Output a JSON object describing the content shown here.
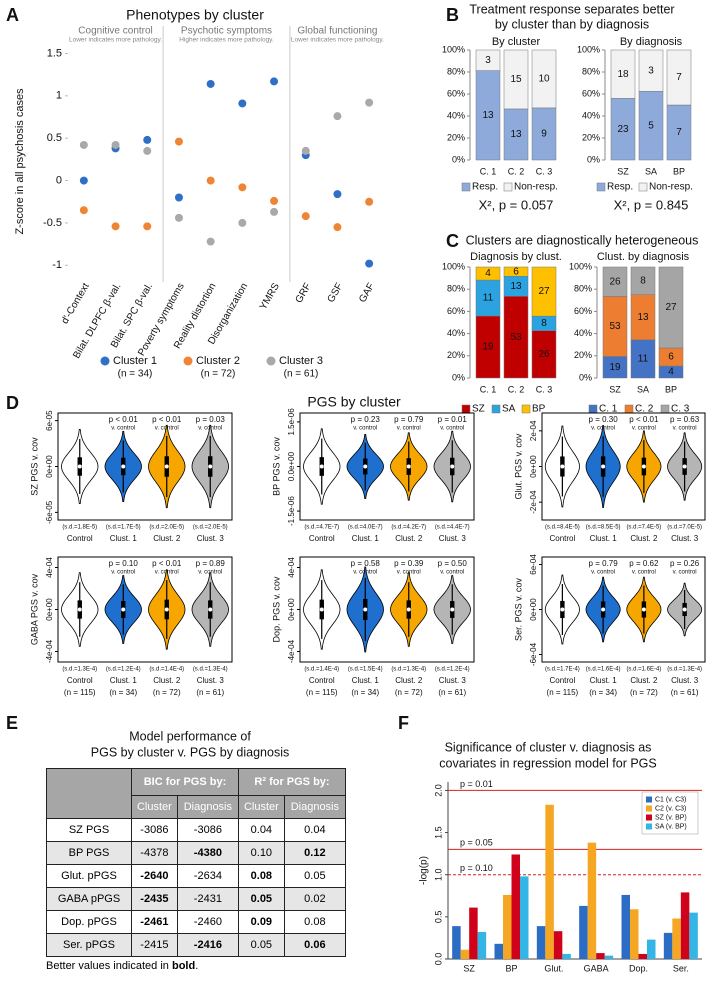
{
  "panel_labels": [
    "A",
    "B",
    "C",
    "D",
    "E",
    "F"
  ],
  "headings": {
    "B": [
      "Treatment response separates better",
      "by cluster than by diagnosis"
    ],
    "C": "Clusters are diagnostically heterogeneous",
    "D": "PGS by cluster",
    "n_labels": [
      "(n = 115)",
      "(n = 34)",
      "(n = 72)",
      "(n = 61)"
    ]
  },
  "chart_data": [
    {
      "type": "dot",
      "title": "Phenotypes by cluster",
      "groups": [
        {
          "title": "Cognitive control",
          "note": "Lower indicates more pathology."
        },
        {
          "title": "Psychotic symptoms",
          "note": "Higher indicates more pathology."
        },
        {
          "title": "Global functioning",
          "note": "Lower indicates more pathology."
        }
      ],
      "ylabel": "Z-score in all psychosis cases",
      "categories": [
        "d'-Context",
        "Bilat. DLPFC β-val.",
        "Bilat. SPC β-val.",
        "Poverty symptoms",
        "Reality distortion",
        "Disorganization",
        "YMRS",
        "GRF",
        "GSF",
        "GAF"
      ],
      "series": [
        {
          "name": "Cluster 1",
          "n_label": "(n = 34)",
          "color": "#2e6fc7",
          "values": [
            0,
            0.38,
            0.48,
            -0.2,
            1.14,
            0.91,
            1.17,
            0.3,
            -0.16,
            -0.98
          ]
        },
        {
          "name": "Cluster 2",
          "n_label": "(n = 72)",
          "color": "#ee8434",
          "values": [
            -0.35,
            -0.54,
            -0.54,
            0.46,
            0,
            -0.08,
            -0.24,
            -0.42,
            -0.55,
            -0.25
          ]
        },
        {
          "name": "Cluster 3",
          "n_label": "(n = 61)",
          "color": "#a9a9a9",
          "values": [
            0.42,
            0.42,
            0.35,
            -0.44,
            -0.72,
            -0.5,
            -0.37,
            0.35,
            0.76,
            0.92
          ]
        }
      ],
      "ylim": [
        -1.15,
        1.6
      ],
      "yticks": [
        -1,
        -0.5,
        0,
        0.5,
        1,
        1.5
      ]
    },
    {
      "type": "stacked_bar",
      "title": "By cluster",
      "categories": [
        "C. 1",
        "C. 2",
        "C. 3"
      ],
      "series": [
        {
          "name": "Resp.",
          "color": "#8eaadb",
          "values": [
            13,
            13,
            9
          ]
        },
        {
          "name": "Non-resp.",
          "color": "#f2f2f2",
          "values": [
            3,
            15,
            10
          ]
        }
      ],
      "ylim": [
        0,
        100
      ],
      "yticks": [
        {
          "value": 0,
          "label": "0%"
        },
        {
          "value": 20,
          "label": "20%"
        },
        {
          "value": 40,
          "label": "40%"
        },
        {
          "value": 60,
          "label": "60%"
        },
        {
          "value": 80,
          "label": "80%"
        },
        {
          "value": 100,
          "label": "100%"
        }
      ],
      "annotation": "Χ², p = 0.057"
    },
    {
      "type": "stacked_bar",
      "title": "By diagnosis",
      "categories": [
        "SZ",
        "SA",
        "BP"
      ],
      "series": [
        {
          "name": "Resp.",
          "color": "#8eaadb",
          "values": [
            23,
            5,
            7
          ]
        },
        {
          "name": "Non-resp.",
          "color": "#f2f2f2",
          "values": [
            18,
            3,
            7
          ]
        }
      ],
      "ylim": [
        0,
        100
      ],
      "yticks": [
        {
          "value": 0,
          "label": "0%"
        },
        {
          "value": 20,
          "label": "20%"
        },
        {
          "value": 40,
          "label": "40%"
        },
        {
          "value": 60,
          "label": "60%"
        },
        {
          "value": 80,
          "label": "80%"
        },
        {
          "value": 100,
          "label": "100%"
        }
      ],
      "annotation": "Χ², p = 0.845"
    },
    {
      "type": "stacked_bar",
      "title": "Diagnosis by clust.",
      "categories": [
        "C. 1",
        "C. 2",
        "C. 3"
      ],
      "series": [
        {
          "name": "SZ",
          "color": "#c00000",
          "values": [
            19,
            53,
            26
          ]
        },
        {
          "name": "SA",
          "color": "#2ba3e0",
          "values": [
            11,
            13,
            8
          ]
        },
        {
          "name": "BP",
          "color": "#ffc000",
          "values": [
            4,
            6,
            27
          ]
        }
      ],
      "ylim": [
        0,
        100
      ],
      "yticks": [
        {
          "value": 0,
          "label": "0%"
        },
        {
          "value": 20,
          "label": "20%"
        },
        {
          "value": 40,
          "label": "40%"
        },
        {
          "value": 60,
          "label": "60%"
        },
        {
          "value": 80,
          "label": "80%"
        },
        {
          "value": 100,
          "label": "100%"
        }
      ]
    },
    {
      "type": "stacked_bar",
      "title": "Clust. by diagnosis",
      "categories": [
        "SZ",
        "SA",
        "BP"
      ],
      "series": [
        {
          "name": "C. 1",
          "color": "#4472c4",
          "values": [
            19,
            11,
            4
          ]
        },
        {
          "name": "C. 2",
          "color": "#ed7d31",
          "values": [
            53,
            13,
            6
          ]
        },
        {
          "name": "C. 3",
          "color": "#a5a5a5",
          "values": [
            26,
            8,
            27
          ]
        }
      ],
      "ylim": [
        0,
        100
      ],
      "yticks": [
        {
          "value": 0,
          "label": "0%"
        },
        {
          "value": 20,
          "label": "20%"
        },
        {
          "value": 40,
          "label": "40%"
        },
        {
          "value": 60,
          "label": "60%"
        },
        {
          "value": 80,
          "label": "80%"
        },
        {
          "value": 100,
          "label": "100%"
        }
      ]
    },
    {
      "type": "violin",
      "ylabel": "SZ PGS v. cov",
      "categories": [
        "Control",
        "Clust. 1",
        "Clust. 2",
        "Clust. 3"
      ],
      "colors": [
        "#ffffff",
        "#1f6fce",
        "#f7a600",
        "#b5b5b5"
      ],
      "values": [
        1.8e-05,
        1.7e-05,
        2e-05,
        2e-05
      ],
      "value_labels": [
        "(s.d.=1.8E-5)",
        "(s.d.=1.7E-5)",
        "(s.d.=2.0E-5)",
        "(s.d.=2.0E-5)"
      ],
      "p_labels": [
        "p < 0.01",
        "p < 0.01",
        "p = 0.03"
      ],
      "p_note": "v. control",
      "p_colors": [
        "#000000",
        "#000000",
        "#000000"
      ],
      "ylim": [
        -7e-05,
        7e-05
      ],
      "yticks": [
        {
          "value": -6e-05,
          "label": "-6e-05"
        },
        {
          "value": 0,
          "label": "0e+00"
        },
        {
          "value": 6e-05,
          "label": "6e-05"
        }
      ]
    },
    {
      "type": "violin",
      "ylabel": "BP PGS v. cov",
      "categories": [
        "Control",
        "Clust. 1",
        "Clust. 2",
        "Clust. 3"
      ],
      "colors": [
        "#ffffff",
        "#1f6fce",
        "#f7a600",
        "#b5b5b5"
      ],
      "values": [
        4.7e-07,
        4e-07,
        4.2e-07,
        4.4e-07
      ],
      "value_labels": [
        "(s.d.=4.7E-7)",
        "(s.d.=4.0E-7)",
        "(s.d.=4.2E-7)",
        "(s.d.=4.4E-7)"
      ],
      "p_labels": [
        "p = 0.23",
        "p = 0.79",
        "p = 0.01"
      ],
      "p_note": "v. control",
      "p_colors": [
        "#999999",
        "#999999",
        "#000000"
      ],
      "ylim": [
        -1.8e-06,
        1.8e-06
      ],
      "yticks": [
        {
          "value": -1.5e-06,
          "label": "-1.5e-06"
        },
        {
          "value": 0,
          "label": "0.0e+00"
        },
        {
          "value": 1.5e-06,
          "label": "1.5e-06"
        }
      ]
    },
    {
      "type": "violin",
      "ylabel": "Glut. PGS v. cov",
      "categories": [
        "Control",
        "Clust. 1",
        "Clust. 2",
        "Clust. 3"
      ],
      "colors": [
        "#ffffff",
        "#1f6fce",
        "#f7a600",
        "#b5b5b5"
      ],
      "values": [
        8.4e-05,
        8.5e-05,
        7.4e-05,
        7e-05
      ],
      "value_labels": [
        "(s.d.=8.4E-5)",
        "(s.d.=8.5E-5)",
        "(s.d.=7.4E-5)",
        "(s.d.=7.0E-5)"
      ],
      "p_labels": [
        "p = 0.30",
        "p < 0.01",
        "p = 0.63"
      ],
      "p_note": "v. control",
      "p_colors": [
        "#999999",
        "#000000",
        "#999999"
      ],
      "ylim": [
        -0.0003,
        0.0003
      ],
      "yticks": [
        {
          "value": -0.0002,
          "label": "-2e-04"
        },
        {
          "value": 0,
          "label": "0e+00"
        },
        {
          "value": 0.0002,
          "label": "2e-04"
        }
      ]
    },
    {
      "type": "violin",
      "ylabel": "GABA PGS v. cov",
      "categories": [
        "Control",
        "Clust. 1",
        "Clust. 2",
        "Clust. 3"
      ],
      "colors": [
        "#ffffff",
        "#1f6fce",
        "#f7a600",
        "#b5b5b5"
      ],
      "values": [
        0.00013,
        0.00012,
        0.00014,
        0.00013
      ],
      "value_labels": [
        "(s.d.=1.3E-4)",
        "(s.d.=1.2E-4)",
        "(s.d.=1.4E-4)",
        "(s.d.=1.3E-4)"
      ],
      "p_labels": [
        "p = 0.10",
        "p < 0.01",
        "p = 0.89"
      ],
      "p_note": "v. control",
      "p_colors": [
        "#999999",
        "#000000",
        "#999999"
      ],
      "ylim": [
        -0.0005,
        0.0005
      ],
      "yticks": [
        {
          "value": -0.0004,
          "label": "-4e-04"
        },
        {
          "value": 0,
          "label": "0e+00"
        },
        {
          "value": 0.0004,
          "label": "4e-04"
        }
      ]
    },
    {
      "type": "violin",
      "ylabel": "Dop. PGS v. cov",
      "categories": [
        "Control",
        "Clust. 1",
        "Clust. 2",
        "Clust. 3"
      ],
      "colors": [
        "#ffffff",
        "#1f6fce",
        "#f7a600",
        "#b5b5b5"
      ],
      "values": [
        0.00014,
        0.00015,
        0.00013,
        0.00012
      ],
      "value_labels": [
        "(s.d.=1.4E-4)",
        "(s.d.=1.5E-4)",
        "(s.d.=1.3E-4)",
        "(s.d.=1.2E-4)"
      ],
      "p_labels": [
        "p = 0.58",
        "p = 0.39",
        "p = 0.50"
      ],
      "p_note": "v. control",
      "p_colors": [
        "#999999",
        "#999999",
        "#999999"
      ],
      "ylim": [
        -0.0005,
        0.0005
      ],
      "yticks": [
        {
          "value": -0.0004,
          "label": "-4e-04"
        },
        {
          "value": 0,
          "label": "0e+00"
        },
        {
          "value": 0.0004,
          "label": "4e-04"
        }
      ]
    },
    {
      "type": "violin",
      "ylabel": "Ser. PGS v. cov",
      "categories": [
        "Control",
        "Clust. 1",
        "Clust. 2",
        "Clust. 3"
      ],
      "colors": [
        "#ffffff",
        "#1f6fce",
        "#f7a600",
        "#b5b5b5"
      ],
      "values": [
        0.00017,
        0.00016,
        0.00016,
        0.00013
      ],
      "value_labels": [
        "(s.d.=1.7E-4)",
        "(s.d.=1.6E-4)",
        "(s.d.=1.6E-4)",
        "(s.d.=1.3E-4)"
      ],
      "p_labels": [
        "p = 0.79",
        "p = 0.62",
        "p = 0.26"
      ],
      "p_note": "v. control",
      "p_colors": [
        "#999999",
        "#999999",
        "#999999"
      ],
      "ylim": [
        -0.0007,
        0.0007
      ],
      "yticks": [
        {
          "value": -0.0006,
          "label": "-6e-04"
        },
        {
          "value": 0,
          "label": "0e+00"
        },
        {
          "value": 0.0006,
          "label": "6e-04"
        }
      ]
    },
    {
      "type": "bar",
      "title": [
        "Significance of cluster v. diagnosis as",
        "covariates in regression model for PGS"
      ],
      "ylabel": "-log(p)",
      "categories": [
        "SZ",
        "BP",
        "Glut.",
        "GABA",
        "Dop.",
        "Ser."
      ],
      "series": [
        {
          "name": "C1 (v. C3)",
          "color": "#2b6cc4",
          "values": [
            0.39,
            0.18,
            0.39,
            0.63,
            0.76,
            0.31
          ]
        },
        {
          "name": "C2 (v. C3)",
          "color": "#f5a623",
          "values": [
            0.11,
            0.76,
            1.83,
            1.38,
            0.59,
            0.48
          ]
        },
        {
          "name": "SZ (v. BP)",
          "color": "#d0021b",
          "values": [
            0.61,
            1.24,
            0.33,
            0.07,
            0.06,
            0.79
          ]
        },
        {
          "name": "SA (v. BP)",
          "color": "#33b5e5",
          "values": [
            0.32,
            0.98,
            0.06,
            0.04,
            0.23,
            0.55
          ]
        }
      ],
      "ylim": [
        0,
        2.1
      ],
      "yticks": [
        {
          "value": 0,
          "label": "0.0"
        },
        0.5,
        {
          "value": 1,
          "label": "1.0"
        },
        1.5,
        {
          "value": 2,
          "label": "2.0"
        }
      ],
      "reference_lines": [
        {
          "value": 2,
          "label": "p = 0.01",
          "style": "solid"
        },
        {
          "value": 1.301,
          "label": "p = 0.05",
          "style": "solid"
        },
        {
          "value": 1,
          "label": "p = 0.10",
          "style": "dashed"
        }
      ],
      "reference_color": "#d62020",
      "legend": "upper right"
    }
  ],
  "table": {
    "title": [
      "Model performance of",
      "PGS by cluster v. PGS by diagnosis"
    ],
    "header": [
      "BIC for PGS by:",
      "R² for PGS by:"
    ],
    "subheader": [
      "Cluster",
      "Diagnosis",
      "Cluster",
      "Diagnosis"
    ],
    "rows": [
      [
        "SZ PGS",
        "-3086",
        "-3086",
        "0.04",
        "0.04"
      ],
      [
        "BP PGS",
        "-4378",
        "-4380",
        "0.10",
        "0.12"
      ],
      [
        "Glut. pPGS",
        "-2640",
        "-2634",
        "0.08",
        "0.05"
      ],
      [
        "GABA pPGS",
        "-2435",
        "-2431",
        "0.05",
        "0.02"
      ],
      [
        "Dop. pPGS",
        "-2461",
        "-2460",
        "0.09",
        "0.08"
      ],
      [
        "Ser. pPGS",
        "-2415",
        "-2416",
        "0.05",
        "0.06"
      ]
    ],
    "bold": [
      [
        false,
        false,
        false,
        false
      ],
      [
        false,
        true,
        false,
        true
      ],
      [
        true,
        false,
        true,
        false
      ],
      [
        true,
        false,
        true,
        false
      ],
      [
        true,
        false,
        true,
        false
      ],
      [
        false,
        true,
        false,
        true
      ]
    ],
    "footnote": [
      "Better values indicated in ",
      "bold",
      "."
    ]
  }
}
